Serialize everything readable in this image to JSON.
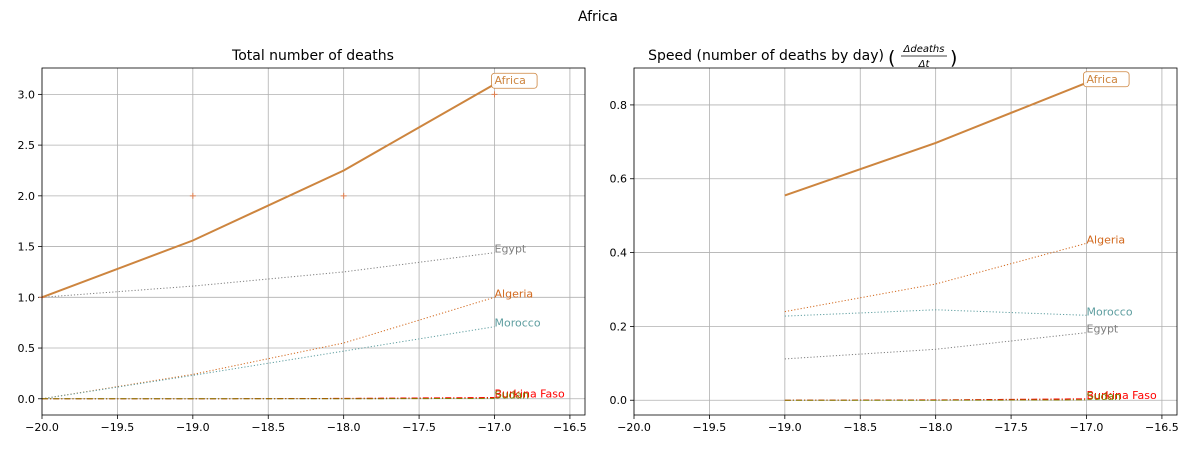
{
  "figure": {
    "title": "Africa"
  },
  "chart_data": [
    {
      "type": "line",
      "title": "Total number of deaths",
      "xlim": [
        -20.0,
        -16.4
      ],
      "ylim": [
        -0.16,
        3.26
      ],
      "xticks": [
        -20.0,
        -19.5,
        -19.0,
        -18.5,
        -18.0,
        -17.5,
        -17.0,
        -16.5
      ],
      "xtick_labels": [
        "−20.0",
        "−19.5",
        "−19.0",
        "−18.5",
        "−18.0",
        "−17.5",
        "−17.0",
        "−16.5"
      ],
      "yticks": [
        0.0,
        0.5,
        1.0,
        1.5,
        2.0,
        2.5,
        3.0
      ],
      "ytick_labels": [
        "0.0",
        "0.5",
        "1.0",
        "1.5",
        "2.0",
        "2.5",
        "3.0"
      ],
      "grid": true,
      "series": [
        {
          "name": "Africa",
          "color": "#cd853f",
          "style": "solid",
          "boxed_label": true,
          "x": [
            -20,
            -19,
            -18,
            -17
          ],
          "y": [
            1.0,
            1.56,
            2.25,
            3.1
          ],
          "markers": {
            "x": [
              -20,
              -19,
              -18,
              -17
            ],
            "y": [
              1,
              2,
              2,
              3
            ]
          }
        },
        {
          "name": "Egypt",
          "color": "#808080",
          "style": "dotted",
          "x": [
            -20,
            -19,
            -18,
            -17
          ],
          "y": [
            1.0,
            1.11,
            1.25,
            1.44
          ]
        },
        {
          "name": "Algeria",
          "color": "#d2691e",
          "style": "dotted",
          "x": [
            -20,
            -19,
            -18,
            -17
          ],
          "y": [
            0.0,
            0.24,
            0.55,
            1.0
          ]
        },
        {
          "name": "Morocco",
          "color": "#5f9ea0",
          "style": "dotted",
          "x": [
            -20,
            -19,
            -18,
            -17
          ],
          "y": [
            0.0,
            0.23,
            0.47,
            0.71
          ]
        },
        {
          "name": "Burkina Faso",
          "color": "#ff0000",
          "style": "dashdot",
          "x": [
            -20,
            -19,
            -18,
            -17
          ],
          "y": [
            0.0,
            0.0,
            0.004,
            0.012
          ]
        },
        {
          "name": "Sudan",
          "color": "#808000",
          "style": "dashdot",
          "x": [
            -20,
            -19,
            -18,
            -17
          ],
          "y": [
            0.0,
            0.0,
            0.0,
            0.004
          ]
        }
      ]
    },
    {
      "type": "line",
      "title": "Speed (number of deaths by day)",
      "title_formula": {
        "numerator": "Δdeaths",
        "denominator": "Δt"
      },
      "xlim": [
        -20.0,
        -16.4
      ],
      "ylim": [
        -0.04,
        0.9
      ],
      "xticks": [
        -20.0,
        -19.5,
        -19.0,
        -18.5,
        -18.0,
        -17.5,
        -17.0,
        -16.5
      ],
      "xtick_labels": [
        "−20.0",
        "−19.5",
        "−19.0",
        "−18.5",
        "−18.0",
        "−17.5",
        "−17.0",
        "−16.5"
      ],
      "yticks": [
        0.0,
        0.2,
        0.4,
        0.6,
        0.8
      ],
      "ytick_labels": [
        "0.0",
        "0.2",
        "0.4",
        "0.6",
        "0.8"
      ],
      "grid": true,
      "series": [
        {
          "name": "Africa",
          "color": "#cd853f",
          "style": "solid",
          "boxed_label": true,
          "x": [
            -19,
            -18,
            -17
          ],
          "y": [
            0.555,
            0.697,
            0.86
          ]
        },
        {
          "name": "Algeria",
          "color": "#d2691e",
          "style": "dotted",
          "x": [
            -19,
            -18,
            -17
          ],
          "y": [
            0.24,
            0.315,
            0.425
          ]
        },
        {
          "name": "Morocco",
          "color": "#5f9ea0",
          "style": "dotted",
          "x": [
            -19,
            -18,
            -17
          ],
          "y": [
            0.228,
            0.245,
            0.23
          ]
        },
        {
          "name": "Egypt",
          "color": "#808080",
          "style": "dotted",
          "x": [
            -19,
            -18,
            -17
          ],
          "y": [
            0.112,
            0.138,
            0.183
          ]
        },
        {
          "name": "Burkina Faso",
          "color": "#ff0000",
          "style": "dashdot",
          "x": [
            -19,
            -18,
            -17
          ],
          "y": [
            0.0,
            0.001,
            0.004
          ]
        },
        {
          "name": "Sudan",
          "color": "#808000",
          "style": "dashdot",
          "x": [
            -19,
            -18,
            -17
          ],
          "y": [
            0.0,
            0.0,
            0.001
          ]
        }
      ]
    }
  ]
}
